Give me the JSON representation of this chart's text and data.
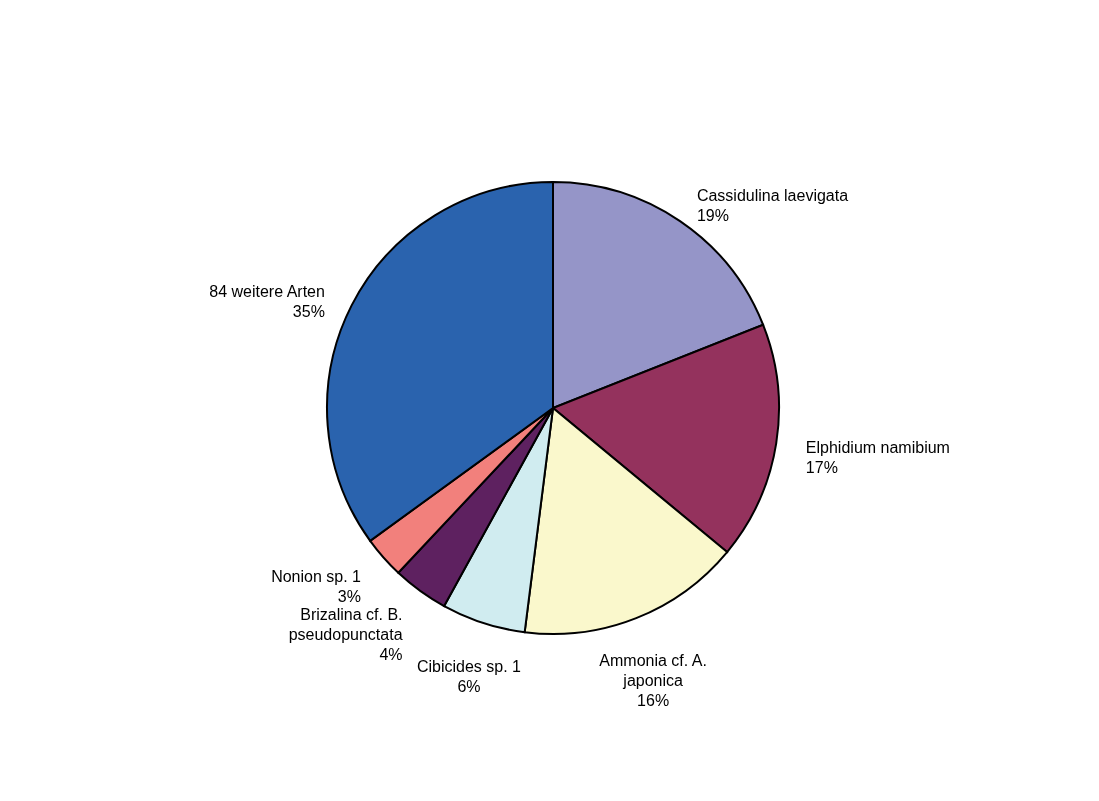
{
  "chart_data": {
    "type": "pie",
    "categories": [
      "Cassidulina laevigata",
      "Elphidium namibium",
      "Ammonia cf. A. japonica",
      "Cibicides sp. 1",
      "Brizalina cf. B. pseudopunctata",
      "Nonion sp. 1",
      "84 weitere Arten"
    ],
    "values": [
      19,
      17,
      16,
      6,
      4,
      3,
      35
    ],
    "colors": [
      "#9595c8",
      "#94325d",
      "#faf8cc",
      "#d0ecf0",
      "#5e2160",
      "#f2807c",
      "#2a63ae"
    ],
    "value_labels": [
      "19%",
      "17%",
      "16%",
      "6%",
      "4%",
      "3%",
      "35%"
    ]
  }
}
